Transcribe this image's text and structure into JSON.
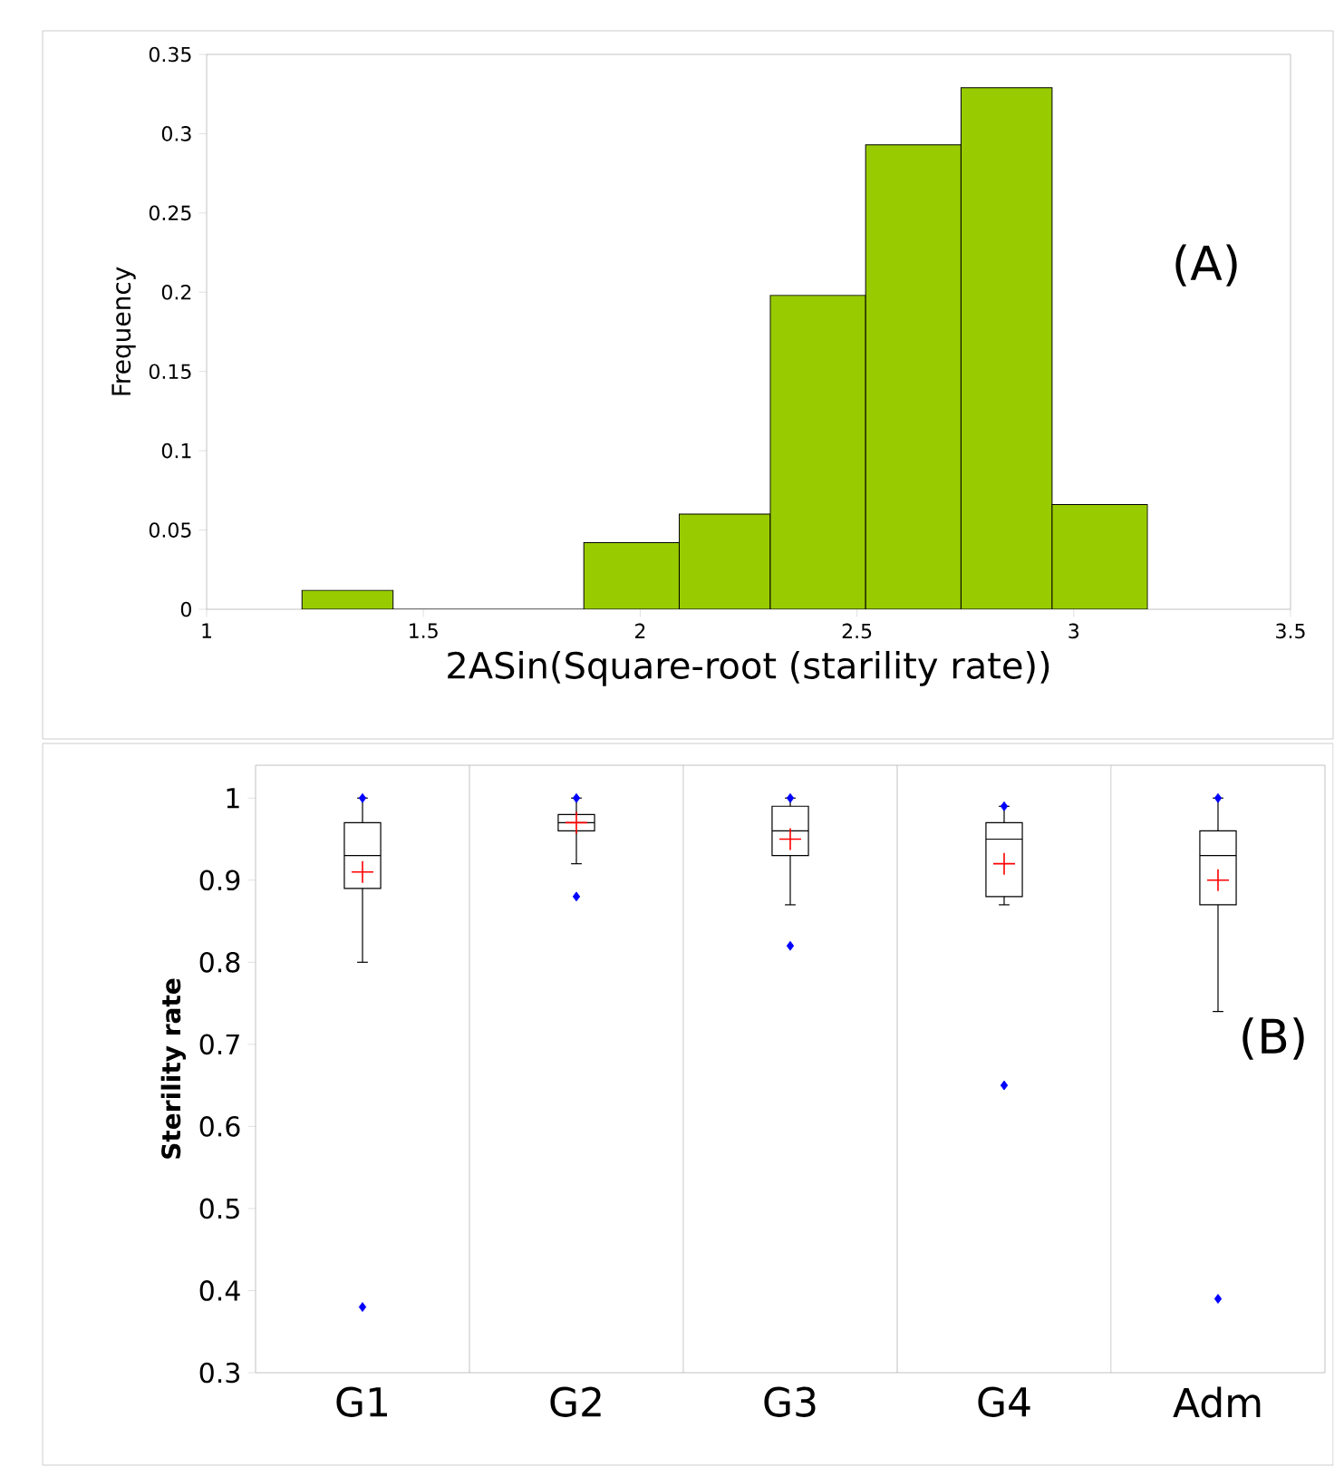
{
  "chart_data": [
    {
      "type": "histogram",
      "xlabel": "2ASin(Square-root (starility rate))",
      "ylabel": "Frequency",
      "annotations": [
        "(A)"
      ],
      "color": "#99cc00",
      "bins": [
        1.22,
        1.43,
        1.87,
        2.09,
        2.3,
        2.52,
        2.74,
        2.95,
        3.17
      ],
      "values": [
        0.012,
        0,
        0.042,
        0.06,
        0.198,
        0.293,
        0.329,
        0.066
      ],
      "xlim": [
        1,
        3.5
      ],
      "xticks": [
        1,
        1.5,
        2,
        2.5,
        3,
        3.5
      ],
      "ylim": [
        0,
        0.35
      ],
      "yticks": [
        0,
        0.05,
        0.1,
        0.15,
        0.2,
        0.25,
        0.3,
        0.35
      ]
    },
    {
      "type": "box",
      "ylabel": "Sterility rate",
      "annotations": [
        "(B)"
      ],
      "categories": [
        "G1",
        "G2",
        "G3",
        "G4",
        "Adm"
      ],
      "boxes": [
        {
          "low": 0.8,
          "q1": 0.89,
          "median": 0.93,
          "q3": 0.97,
          "high": 1.0,
          "outliers": [
            1.0,
            0.38
          ]
        },
        {
          "low": 0.92,
          "q1": 0.96,
          "median": 0.97,
          "q3": 0.98,
          "high": 1.0,
          "outliers": [
            1.0,
            0.88
          ]
        },
        {
          "low": 0.87,
          "q1": 0.93,
          "median": 0.96,
          "q3": 0.99,
          "high": 1.0,
          "outliers": [
            1.0,
            0.82
          ]
        },
        {
          "low": 0.87,
          "q1": 0.88,
          "median": 0.95,
          "q3": 0.97,
          "high": 0.99,
          "outliers": [
            0.99,
            0.65
          ]
        },
        {
          "low": 0.74,
          "q1": 0.87,
          "median": 0.93,
          "q3": 0.96,
          "high": 1.0,
          "outliers": [
            1.0,
            0.39
          ]
        }
      ],
      "series": [
        {
          "type": "scatter",
          "x": [
            "G1",
            "G2",
            "G3",
            "G4",
            "Adm"
          ],
          "values": [
            0.91,
            0.97,
            0.95,
            0.92,
            0.9
          ],
          "color": "#ff0000"
        }
      ],
      "marker": "cross",
      "ylim": [
        0.3,
        1.04
      ],
      "yticks": [
        0.3,
        0.4,
        0.5,
        0.6,
        0.7,
        0.8,
        0.9,
        1
      ]
    }
  ]
}
